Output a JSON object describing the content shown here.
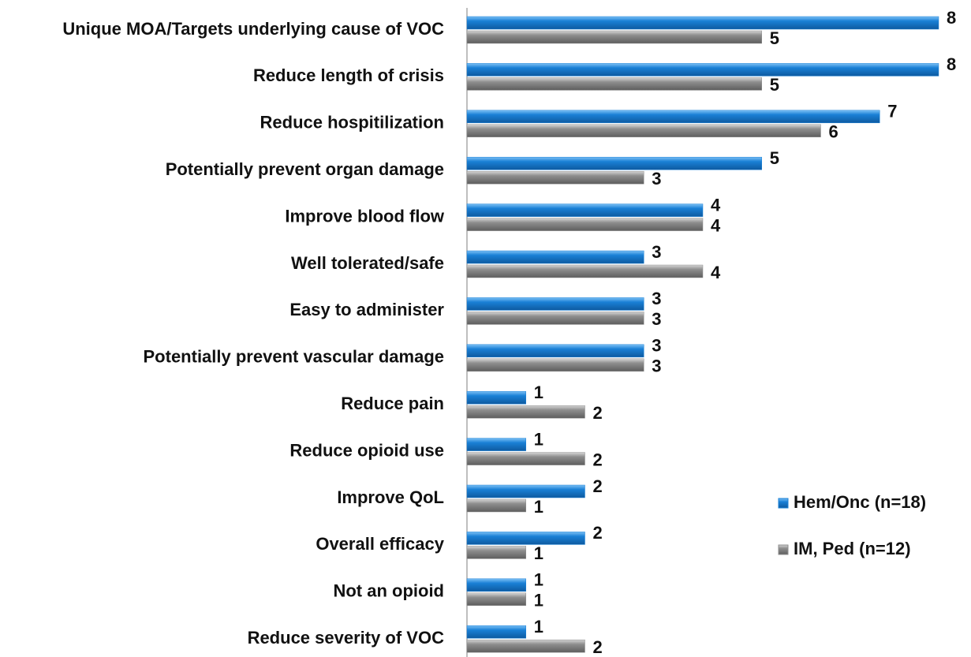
{
  "chart_data": {
    "type": "barh",
    "categories": [
      "Unique MOA/Targets underlying cause of VOC",
      "Reduce length of crisis",
      "Reduce hospitilization",
      "Potentially prevent organ damage",
      "Improve blood flow",
      "Well tolerated/safe",
      "Easy to administer",
      "Potentially prevent vascular damage",
      "Reduce pain",
      "Reduce opioid use",
      "Improve QoL",
      "Overall efficacy",
      "Not an opioid",
      "Reduce severity of VOC"
    ],
    "series": [
      {
        "name": "Hem/Onc (n=18)",
        "color": "#1a80d6",
        "values": [
          8,
          8,
          7,
          5,
          4,
          3,
          3,
          3,
          1,
          1,
          2,
          2,
          1,
          1
        ]
      },
      {
        "name": "IM, Ped (n=12)",
        "color": "#8e8e8e",
        "values": [
          5,
          5,
          6,
          3,
          4,
          4,
          3,
          3,
          2,
          2,
          1,
          1,
          1,
          2
        ]
      }
    ],
    "xlim": [
      0,
      8
    ],
    "legend": "right"
  }
}
